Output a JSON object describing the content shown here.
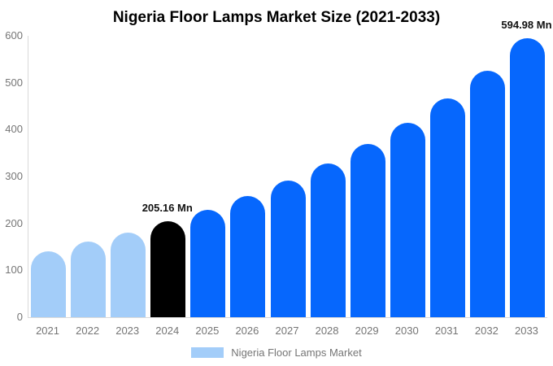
{
  "chart_data": {
    "type": "bar",
    "title": "Nigeria Floor Lamps Market Size (2021-2033)",
    "categories": [
      "2021",
      "2022",
      "2023",
      "2024",
      "2025",
      "2026",
      "2027",
      "2028",
      "2029",
      "2030",
      "2031",
      "2032",
      "2033"
    ],
    "values": [
      140,
      161,
      181,
      205.16,
      229,
      258,
      291,
      328,
      369,
      415,
      467,
      525,
      594.98
    ],
    "value_unit": "Mn",
    "xlabel": "",
    "ylabel": "",
    "ylim": [
      0,
      600
    ],
    "y_ticks": [
      0,
      100,
      200,
      300,
      400,
      500,
      600
    ],
    "grid": false,
    "bar_roles": [
      "historical",
      "historical",
      "historical",
      "highlight",
      "forecast",
      "forecast",
      "forecast",
      "forecast",
      "forecast",
      "forecast",
      "forecast",
      "forecast",
      "forecast"
    ],
    "palette": {
      "historical": "#a3cdf9",
      "highlight": "#000000",
      "forecast": "#0667fd"
    },
    "axis_line_color": "#d9d9d9",
    "tick_text_color": "#757575",
    "title_color": "#000000",
    "annotations": [
      {
        "category": "2024",
        "text": "205.16 Mn"
      },
      {
        "category": "2033",
        "text": "594.98 Mn"
      }
    ],
    "legend": {
      "label": "Nigeria Floor Lamps Market",
      "position": "bottom",
      "swatch_role": "historical"
    }
  }
}
